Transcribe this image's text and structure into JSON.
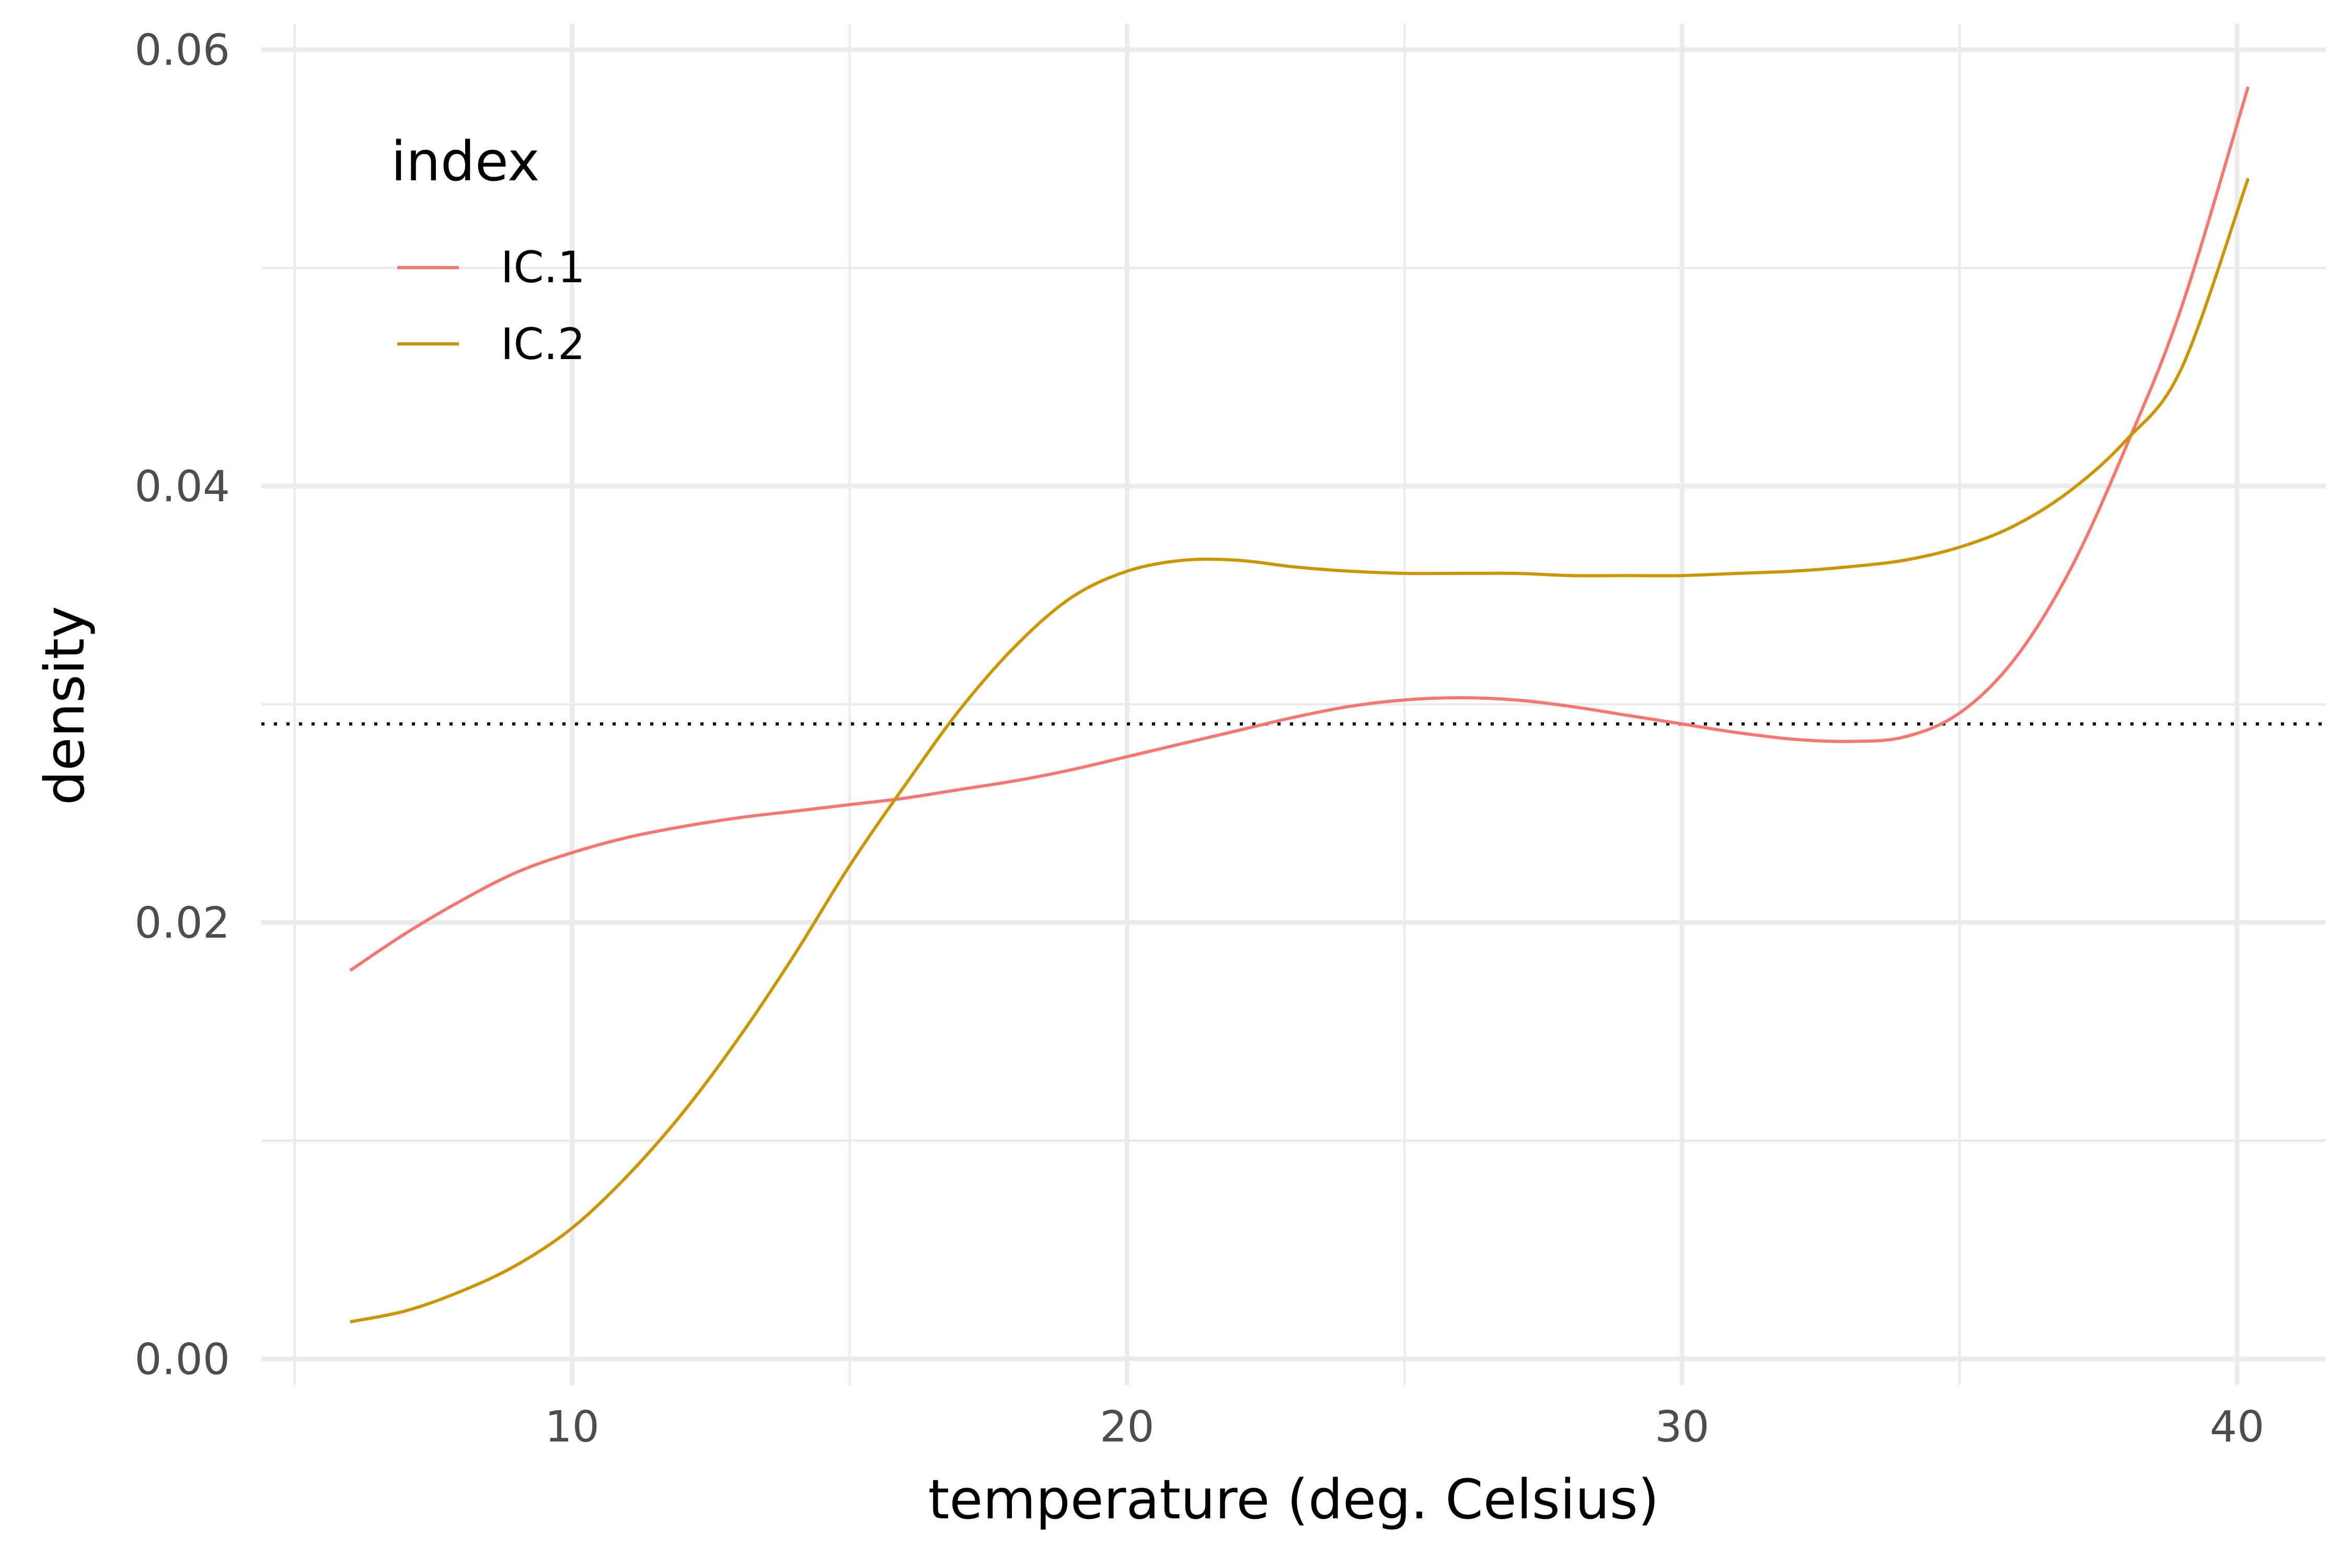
{
  "chart_data": {
    "type": "line",
    "xlabel": "temperature (deg. Celsius)",
    "ylabel": "density",
    "xlim": [
      4.4,
      41.6
    ],
    "ylim": [
      -0.0012,
      0.0612
    ],
    "x_ticks": [
      10,
      20,
      30,
      40
    ],
    "x_tick_labels": [
      "10",
      "20",
      "30",
      "40"
    ],
    "y_ticks": [
      0.0,
      0.02,
      0.04,
      0.06
    ],
    "y_tick_labels": [
      "0.00",
      "0.02",
      "0.04",
      "0.06"
    ],
    "grid": true,
    "legend": {
      "title": "index",
      "position": "top-left"
    },
    "reference_line": {
      "orientation": "horizontal",
      "y": 0.0291,
      "style": "dotted",
      "color": "#000000"
    },
    "series": [
      {
        "name": "IC.1",
        "color": "#F8766D",
        "x": [
          6.0,
          7.0,
          8.0,
          9.0,
          10.0,
          11.0,
          12.0,
          13.0,
          14.0,
          15.0,
          16.0,
          17.0,
          18.0,
          19.0,
          20.0,
          21.0,
          22.0,
          23.0,
          24.0,
          25.0,
          26.0,
          27.0,
          28.0,
          29.0,
          30.0,
          31.0,
          32.0,
          33.0,
          34.0,
          35.0,
          36.0,
          37.0,
          38.0,
          39.0,
          40.2
        ],
        "y": [
          0.0178,
          0.0195,
          0.021,
          0.0223,
          0.0232,
          0.0239,
          0.0244,
          0.0248,
          0.0251,
          0.0254,
          0.0257,
          0.0261,
          0.0265,
          0.027,
          0.0276,
          0.0282,
          0.0288,
          0.0294,
          0.0299,
          0.0302,
          0.0303,
          0.0302,
          0.0299,
          0.0295,
          0.0291,
          0.0287,
          0.0284,
          0.0283,
          0.0285,
          0.0296,
          0.0321,
          0.0362,
          0.0418,
          0.0482,
          0.0583
        ]
      },
      {
        "name": "IC.2",
        "color": "#CD9600",
        "x": [
          6.0,
          7.0,
          8.0,
          9.0,
          10.0,
          11.0,
          12.0,
          13.0,
          14.0,
          15.0,
          16.0,
          17.0,
          18.0,
          19.0,
          20.0,
          21.0,
          22.0,
          23.0,
          24.0,
          25.0,
          26.0,
          27.0,
          28.0,
          29.0,
          30.0,
          31.0,
          32.0,
          33.0,
          34.0,
          35.0,
          36.0,
          37.0,
          38.0,
          39.0,
          40.2
        ],
        "y": [
          0.0017,
          0.0022,
          0.0031,
          0.0043,
          0.006,
          0.0084,
          0.0113,
          0.0147,
          0.0185,
          0.0226,
          0.0263,
          0.0298,
          0.0327,
          0.0349,
          0.0361,
          0.0366,
          0.0366,
          0.0363,
          0.0361,
          0.036,
          0.036,
          0.036,
          0.0359,
          0.0359,
          0.0359,
          0.036,
          0.0361,
          0.0363,
          0.0366,
          0.0372,
          0.0382,
          0.0398,
          0.0421,
          0.0454,
          0.0541
        ]
      }
    ]
  }
}
